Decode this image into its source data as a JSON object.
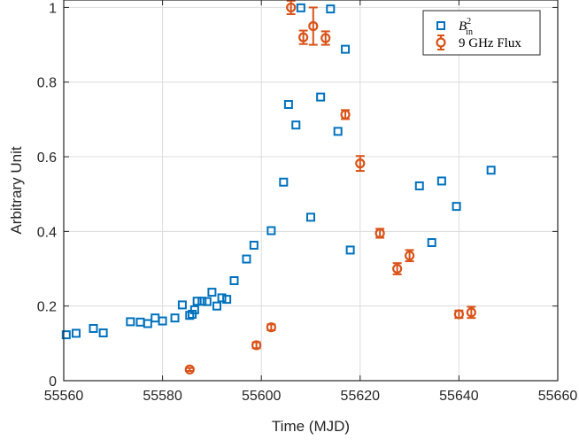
{
  "chart_data": {
    "type": "scatter",
    "xlabel": "Time (MJD)",
    "ylabel": "Arbitrary Unit",
    "xlim": [
      55560,
      55660
    ],
    "ylim": [
      0,
      1.02
    ],
    "xticks": [
      55560,
      55580,
      55600,
      55620,
      55640,
      55660
    ],
    "yticks": [
      0,
      0.2,
      0.4,
      0.6,
      0.8,
      1
    ],
    "ytick_labels": [
      "0",
      "0.2",
      "0.4",
      "0.6",
      "0.8",
      "1"
    ],
    "grid": true,
    "legend_position": "top-right",
    "series": [
      {
        "name": "B",
        "name_sup": "2",
        "name_sub": "in",
        "marker": "square",
        "color": "#0072BD",
        "points": [
          [
            55560.5,
            0.123
          ],
          [
            55562.5,
            0.127
          ],
          [
            55566,
            0.14
          ],
          [
            55568,
            0.128
          ],
          [
            55573.5,
            0.158
          ],
          [
            55575.5,
            0.157
          ],
          [
            55577,
            0.153
          ],
          [
            55578.5,
            0.168
          ],
          [
            55580,
            0.16
          ],
          [
            55582.5,
            0.168
          ],
          [
            55584,
            0.203
          ],
          [
            55585.5,
            0.175
          ],
          [
            55586,
            0.178
          ],
          [
            55586.5,
            0.19
          ],
          [
            55587,
            0.213
          ],
          [
            55588,
            0.213
          ],
          [
            55589,
            0.212
          ],
          [
            55590,
            0.237
          ],
          [
            55591,
            0.2
          ],
          [
            55592,
            0.222
          ],
          [
            55593,
            0.218
          ],
          [
            55594.5,
            0.268
          ],
          [
            55597,
            0.326
          ],
          [
            55598.5,
            0.363
          ],
          [
            55602,
            0.402
          ],
          [
            55604.5,
            0.532
          ],
          [
            55605.5,
            0.74
          ],
          [
            55607,
            0.685
          ],
          [
            55608,
            0.999
          ],
          [
            55610,
            0.438
          ],
          [
            55612,
            0.76
          ],
          [
            55614,
            0.996
          ],
          [
            55615.5,
            0.668
          ],
          [
            55617,
            0.888
          ],
          [
            55618,
            0.35
          ],
          [
            55632,
            0.522
          ],
          [
            55634.5,
            0.37
          ],
          [
            55636.5,
            0.535
          ],
          [
            55639.5,
            0.467
          ],
          [
            55646.5,
            0.564
          ]
        ]
      },
      {
        "name": "9 GHz Flux",
        "marker": "circle-errorbar",
        "color": "#D95319",
        "points": [
          [
            55585.5,
            0.03,
            0.004
          ],
          [
            55599,
            0.095,
            0.008
          ],
          [
            55602,
            0.143,
            0.008
          ],
          [
            55606,
            1.0,
            0.018
          ],
          [
            55608.5,
            0.92,
            0.018
          ],
          [
            55610.5,
            0.95,
            0.05
          ],
          [
            55613,
            0.918,
            0.018
          ],
          [
            55617,
            0.713,
            0.012
          ],
          [
            55620,
            0.582,
            0.02
          ],
          [
            55624,
            0.395,
            0.012
          ],
          [
            55627.5,
            0.3,
            0.015
          ],
          [
            55630,
            0.335,
            0.015
          ],
          [
            55640,
            0.178,
            0.01
          ],
          [
            55642.5,
            0.183,
            0.015
          ]
        ]
      }
    ]
  }
}
